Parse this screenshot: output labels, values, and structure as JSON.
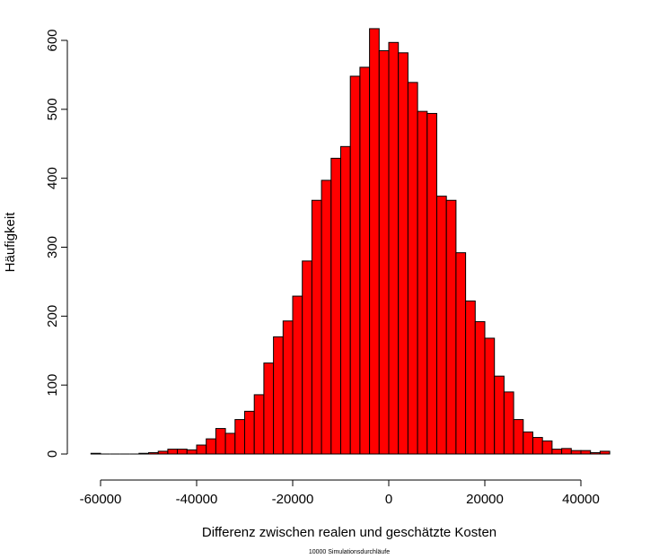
{
  "chart_data": {
    "type": "bar",
    "title": "",
    "xlabel": "Differenz zwischen realen und geschätzte Kosten",
    "ylabel": "Häufigkeit",
    "subtitle": "10000 Simulationsdurchläufe",
    "bar_color": "#ff0000",
    "bar_edge_color": "#000000",
    "xlim": [
      -62500,
      46500
    ],
    "ylim": [
      0,
      620
    ],
    "xticks": [
      -60000,
      -40000,
      -20000,
      0,
      20000,
      40000
    ],
    "xtick_labels": [
      "-60000",
      "-40000",
      "-20000",
      "0",
      "20000",
      "40000"
    ],
    "yticks": [
      0,
      100,
      200,
      300,
      400,
      500,
      600
    ],
    "ytick_labels": [
      "0",
      "100",
      "200",
      "300",
      "400",
      "500",
      "600"
    ],
    "bin_width": 2000,
    "bin_start": -62000,
    "values": [
      1,
      0,
      0,
      0,
      0,
      1,
      2,
      4,
      7,
      7,
      6,
      13,
      22,
      37,
      30,
      50,
      62,
      86,
      132,
      170,
      193,
      229,
      280,
      368,
      397,
      429,
      446,
      548,
      561,
      617,
      585,
      597,
      582,
      539,
      497,
      494,
      374,
      368,
      292,
      222,
      192,
      168,
      113,
      90,
      50,
      32,
      24,
      19,
      7,
      8,
      5,
      5,
      2,
      4
    ]
  }
}
